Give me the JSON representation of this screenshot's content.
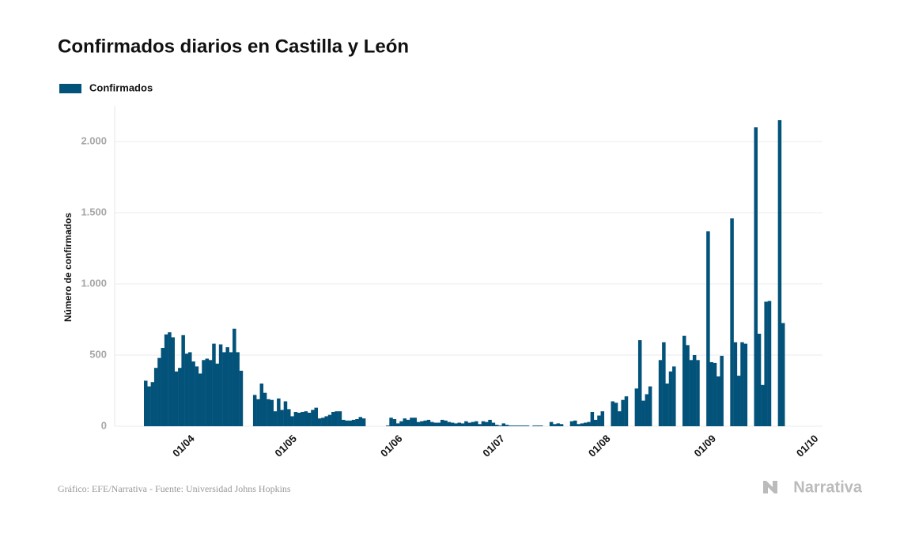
{
  "chart_data": {
    "type": "bar",
    "title": "Confirmados diarios en Castilla y León",
    "y_label": "Número de confirmados",
    "source": "Gráfico: EFE/Narrativa - Fuente: Universidad Johns Hopkins",
    "brand": "Narrativa",
    "legend_position": "top-left",
    "grid": true,
    "categories": [
      null,
      null,
      null,
      null,
      null,
      null,
      null,
      null,
      null,
      null,
      null,
      null,
      null,
      "01/04",
      null,
      null,
      null,
      null,
      null,
      null,
      null,
      null,
      null,
      null,
      null,
      null,
      null,
      null,
      null,
      null,
      null,
      null,
      null,
      null,
      null,
      null,
      null,
      null,
      null,
      null,
      null,
      null,
      null,
      "01/05",
      null,
      null,
      null,
      null,
      null,
      null,
      null,
      null,
      null,
      null,
      null,
      null,
      null,
      null,
      null,
      null,
      null,
      null,
      null,
      null,
      null,
      null,
      null,
      null,
      null,
      null,
      null,
      null,
      null,
      null,
      "01/06",
      null,
      null,
      null,
      null,
      null,
      null,
      null,
      null,
      null,
      null,
      null,
      null,
      null,
      null,
      null,
      null,
      null,
      null,
      null,
      null,
      null,
      null,
      null,
      null,
      null,
      null,
      null,
      null,
      null,
      "01/07",
      null,
      null,
      null,
      null,
      null,
      null,
      null,
      null,
      null,
      null,
      null,
      null,
      null,
      null,
      null,
      null,
      null,
      null,
      null,
      null,
      null,
      null,
      null,
      null,
      null,
      null,
      null,
      null,
      null,
      null,
      "01/08",
      null,
      null,
      null,
      null,
      null,
      null,
      null,
      null,
      null,
      null,
      null,
      null,
      null,
      null,
      null,
      null,
      null,
      null,
      null,
      null,
      null,
      null,
      null,
      null,
      null,
      null,
      null,
      null,
      null,
      null,
      "01/09",
      null,
      null,
      null,
      null,
      null,
      null,
      null,
      null,
      null,
      null,
      null,
      null,
      null,
      null,
      null,
      null,
      null,
      null,
      null,
      null,
      null,
      null,
      null,
      null,
      null,
      null,
      null,
      null,
      null,
      "01/10"
    ],
    "series": [
      {
        "name": "Confirmados",
        "color": "#03527a",
        "values": [
          320,
          280,
          310,
          410,
          480,
          550,
          645,
          660,
          625,
          385,
          410,
          640,
          510,
          520,
          455,
          420,
          370,
          465,
          475,
          465,
          580,
          440,
          575,
          520,
          555,
          520,
          685,
          520,
          390,
          null,
          null,
          null,
          220,
          190,
          300,
          235,
          190,
          185,
          105,
          195,
          115,
          175,
          120,
          70,
          100,
          95,
          100,
          105,
          95,
          115,
          130,
          55,
          60,
          70,
          80,
          100,
          105,
          105,
          45,
          40,
          40,
          45,
          50,
          65,
          55,
          null,
          null,
          null,
          null,
          null,
          null,
          5,
          60,
          50,
          20,
          35,
          55,
          45,
          60,
          60,
          30,
          35,
          40,
          45,
          30,
          25,
          25,
          45,
          40,
          30,
          25,
          20,
          25,
          20,
          35,
          25,
          30,
          35,
          15,
          35,
          30,
          45,
          25,
          10,
          5,
          20,
          10,
          5,
          5,
          5,
          5,
          5,
          5,
          null,
          5,
          5,
          5,
          null,
          null,
          30,
          15,
          20,
          15,
          null,
          null,
          35,
          40,
          15,
          20,
          25,
          30,
          100,
          45,
          75,
          105,
          null,
          null,
          175,
          165,
          105,
          185,
          210,
          null,
          null,
          265,
          605,
          180,
          225,
          280,
          null,
          null,
          465,
          590,
          300,
          385,
          420,
          null,
          null,
          635,
          570,
          465,
          500,
          465,
          null,
          null,
          1370,
          450,
          445,
          350,
          495,
          null,
          null,
          1460,
          590,
          355,
          590,
          580,
          null,
          null,
          2100,
          650,
          290,
          875,
          880,
          null,
          null,
          2150,
          725,
          null,
          null,
          null,
          null,
          null,
          null,
          null,
          null,
          null
        ]
      }
    ],
    "ylim": [
      0,
      2250
    ],
    "yticks": [
      0,
      500,
      {
        "value": 1000,
        "label": "1.000"
      },
      {
        "value": 1500,
        "label": "1.500"
      },
      {
        "value": 2000,
        "label": "2.000"
      }
    ]
  }
}
